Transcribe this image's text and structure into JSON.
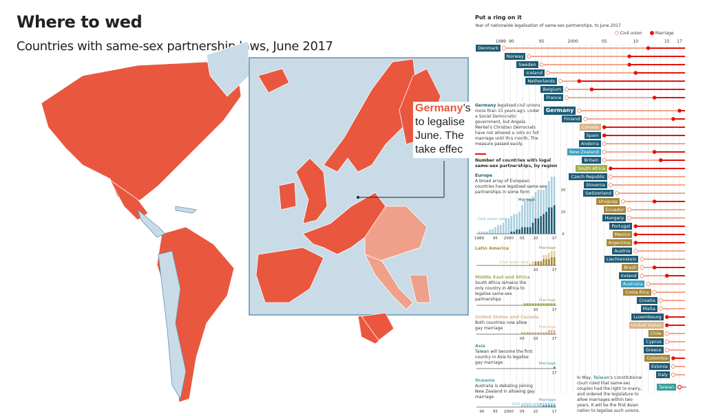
{
  "header": {
    "title": "Where to wed",
    "subtitle": "Countries with same-sex partnership laws, June 2017"
  },
  "map": {
    "callout": {
      "highlight": "Germany",
      "lines": [
        "’s",
        "to legalise",
        "June. The",
        "take effec"
      ]
    },
    "colors": {
      "legal": "#e9573f",
      "civil": "#f0a08a",
      "none": "#c9dbe6",
      "border": "#5a93b8"
    }
  },
  "colors": {
    "civil_union": "#f2a58c",
    "marriage": "#e3120b",
    "europe": "#1d5a73",
    "latin_america": "#a8883a",
    "us_canada": "#d8b48c",
    "oceania": "#3aa0c0",
    "middle_east_africa": "#9fb04a",
    "asia": "#3a9f9a"
  },
  "chart_data": [
    {
      "type": "timeline",
      "title": "Put a ring on it",
      "subtitle": "Year of nationwide legalisation of same-sex partnerships, to June 2017",
      "legend": [
        "Civil union",
        "Marriage"
      ],
      "legend_position": "top-right",
      "x_ticks": [
        "1989",
        "90",
        "95",
        "2000",
        "05",
        "10",
        "15",
        "17"
      ],
      "x_tick_years": [
        1989,
        1990,
        1995,
        2000,
        2005,
        2010,
        2015,
        2017
      ],
      "xlim": [
        1989,
        2017
      ],
      "countries": [
        {
          "name": "Denmark",
          "region": "europe",
          "civil": 1989,
          "marriage": 2012
        },
        {
          "name": "Norway",
          "region": "europe",
          "civil": 1993,
          "marriage": 2009
        },
        {
          "name": "Sweden",
          "region": "europe",
          "civil": 1995,
          "marriage": 2009
        },
        {
          "name": "Iceland",
          "region": "europe",
          "civil": 1996,
          "marriage": 2010
        },
        {
          "name": "Netherlands",
          "region": "europe",
          "civil": 1998,
          "marriage": 2001
        },
        {
          "name": "Belgium",
          "region": "europe",
          "civil": 1999,
          "marriage": 2003
        },
        {
          "name": "France",
          "region": "europe",
          "civil": 1999,
          "marriage": 2013
        },
        {
          "name": "Germany",
          "region": "europe",
          "civil": 2001,
          "marriage": 2017,
          "highlight": true
        },
        {
          "name": "Finland",
          "region": "europe",
          "civil": 2002,
          "marriage": 2016
        },
        {
          "name": "Canada",
          "region": "us_canada",
          "civil": null,
          "marriage": 2005
        },
        {
          "name": "Spain",
          "region": "europe",
          "civil": null,
          "marriage": 2005
        },
        {
          "name": "Andorra",
          "region": "europe",
          "civil": 2005,
          "marriage": null
        },
        {
          "name": "New Zealand",
          "region": "oceania",
          "civil": 2005,
          "marriage": 2013
        },
        {
          "name": "Britain",
          "region": "europe",
          "civil": 2005,
          "marriage": 2014
        },
        {
          "name": "South Africa",
          "region": "middle_east_africa",
          "civil": null,
          "marriage": 2006
        },
        {
          "name": "Czech Republic",
          "region": "europe",
          "civil": 2006,
          "marriage": null
        },
        {
          "name": "Slovenia",
          "region": "europe",
          "civil": 2006,
          "marriage": null
        },
        {
          "name": "Switzerland",
          "region": "europe",
          "civil": 2007,
          "marriage": null
        },
        {
          "name": "Uruguay",
          "region": "latin_america",
          "civil": 2008,
          "marriage": 2013
        },
        {
          "name": "Ecuador",
          "region": "latin_america",
          "civil": 2009,
          "marriage": null
        },
        {
          "name": "Hungary",
          "region": "europe",
          "civil": 2009,
          "marriage": null
        },
        {
          "name": "Portugal",
          "region": "europe",
          "civil": null,
          "marriage": 2010
        },
        {
          "name": "Mexico",
          "region": "latin_america",
          "civil": null,
          "marriage": 2010
        },
        {
          "name": "Argentina",
          "region": "latin_america",
          "civil": null,
          "marriage": 2010
        },
        {
          "name": "Austria",
          "region": "europe",
          "civil": 2010,
          "marriage": null
        },
        {
          "name": "Liechtenstein",
          "region": "europe",
          "civil": 2011,
          "marriage": null
        },
        {
          "name": "Brazil",
          "region": "latin_america",
          "civil": 2011,
          "marriage": 2013
        },
        {
          "name": "Ireland",
          "region": "europe",
          "civil": 2011,
          "marriage": 2015
        },
        {
          "name": "Australia",
          "region": "oceania",
          "civil": 2012,
          "marriage": null
        },
        {
          "name": "Costa Rica",
          "region": "latin_america",
          "civil": 2013,
          "marriage": null
        },
        {
          "name": "Croatia",
          "region": "europe",
          "civil": 2014,
          "marriage": null
        },
        {
          "name": "Malta",
          "region": "europe",
          "civil": 2014,
          "marriage": null
        },
        {
          "name": "Luxembourg",
          "region": "europe",
          "civil": null,
          "marriage": 2015
        },
        {
          "name": "United States",
          "region": "us_canada",
          "civil": null,
          "marriage": 2015
        },
        {
          "name": "Chile",
          "region": "latin_america",
          "civil": 2015,
          "marriage": null
        },
        {
          "name": "Cyprus",
          "region": "europe",
          "civil": 2015,
          "marriage": null
        },
        {
          "name": "Greece",
          "region": "europe",
          "civil": 2015,
          "marriage": null
        },
        {
          "name": "Colombia",
          "region": "latin_america",
          "civil": null,
          "marriage": 2016
        },
        {
          "name": "Estonia",
          "region": "europe",
          "civil": 2016,
          "marriage": null
        },
        {
          "name": "Italy",
          "region": "europe",
          "civil": 2016,
          "marriage": null
        },
        {
          "name": "Taiwan",
          "region": "asia",
          "civil": null,
          "marriage": 2017,
          "pending": true
        }
      ]
    },
    {
      "type": "bar",
      "title": "Number of countries with legal same-sex partnerships, by region",
      "regions": [
        {
          "name": "Europe",
          "key": "europe",
          "text": "A broad array of European countries have legalised same-sex partnerships in some form",
          "labels": {
            "marriage": "Marriage",
            "civil": "Civil union only"
          },
          "x_ticks": [
            "1989",
            "95",
            "2000",
            "05",
            "10",
            "17"
          ],
          "y_ticks": [
            "0",
            "10",
            "20"
          ],
          "ylim": [
            0,
            25
          ],
          "years": [
            1989,
            1990,
            1991,
            1992,
            1993,
            1994,
            1995,
            1996,
            1997,
            1998,
            1999,
            2000,
            2001,
            2002,
            2003,
            2004,
            2005,
            2006,
            2007,
            2008,
            2009,
            2010,
            2011,
            2012,
            2013,
            2014,
            2015,
            2016,
            2017
          ],
          "total": [
            1,
            1,
            1,
            1,
            2,
            2,
            3,
            4,
            4,
            5,
            7,
            7,
            8,
            9,
            9,
            10,
            13,
            15,
            16,
            16,
            17,
            19,
            20,
            20,
            20,
            22,
            24,
            26,
            26
          ],
          "marriage": [
            0,
            0,
            0,
            0,
            0,
            0,
            0,
            0,
            0,
            0,
            0,
            0,
            1,
            1,
            2,
            2,
            3,
            3,
            3,
            3,
            5,
            7,
            7,
            8,
            9,
            10,
            12,
            12,
            13
          ]
        },
        {
          "name": "Latin America",
          "key": "latin_america",
          "text": "",
          "labels": {
            "marriage": "Marriage",
            "civil": "Civil union only"
          },
          "x_ticks": [
            "10",
            "17"
          ],
          "years": [
            2008,
            2009,
            2010,
            2011,
            2012,
            2013,
            2014,
            2015,
            2016,
            2017
          ],
          "total": [
            1,
            2,
            2,
            2,
            2,
            5,
            5,
            6,
            7,
            7
          ],
          "marriage": [
            0,
            0,
            2,
            2,
            2,
            3,
            3,
            3,
            4,
            4
          ]
        },
        {
          "name": "Middle East and Africa",
          "key": "middle_east_africa",
          "text": "South Africa remains the only country in Africa to legalise same-sex partnerships",
          "labels": {
            "marriage": "Marriage"
          },
          "x_ticks": [
            "10",
            "17"
          ],
          "years": [
            2006,
            2007,
            2008,
            2009,
            2010,
            2011,
            2012,
            2013,
            2014,
            2015,
            2016,
            2017
          ],
          "total": [
            1,
            1,
            1,
            1,
            1,
            1,
            1,
            1,
            1,
            1,
            1,
            1
          ],
          "marriage": [
            1,
            1,
            1,
            1,
            1,
            1,
            1,
            1,
            1,
            1,
            1,
            1
          ]
        },
        {
          "name": "United States and Canada",
          "key": "us_canada",
          "text": "Both countries now allow gay marriage",
          "labels": {
            "marriage": "Marriage"
          },
          "x_ticks": [
            "05",
            "10",
            "17"
          ],
          "years": [
            2005,
            2006,
            2007,
            2008,
            2009,
            2010,
            2011,
            2012,
            2013,
            2014,
            2015,
            2016,
            2017
          ],
          "total": [
            1,
            1,
            1,
            1,
            1,
            1,
            1,
            1,
            1,
            1,
            2,
            2,
            2
          ],
          "marriage": [
            1,
            1,
            1,
            1,
            1,
            1,
            1,
            1,
            1,
            1,
            2,
            2,
            2
          ]
        },
        {
          "name": "Asia",
          "key": "asia",
          "text": "Taiwan will become the first country in Asia to legalise gay marriage",
          "labels": {
            "marriage": "Marriage"
          },
          "x_ticks": [
            "17"
          ],
          "years": [
            2017
          ],
          "total": [
            1
          ],
          "marriage": [
            1
          ]
        },
        {
          "name": "Oceania",
          "key": "oceania",
          "text": "Australia is debating joining New Zealand in allowing gay marriage",
          "labels": {
            "marriage": "Marriage",
            "civil": "Civil union only"
          },
          "x_ticks": [
            "90",
            "95",
            "2000",
            "05",
            "10",
            "17"
          ],
          "years": [
            2005,
            2006,
            2007,
            2008,
            2009,
            2010,
            2011,
            2012,
            2013,
            2014,
            2015,
            2016,
            2017
          ],
          "total": [
            1,
            1,
            1,
            1,
            1,
            1,
            1,
            2,
            2,
            2,
            2,
            2,
            2
          ],
          "marriage": [
            0,
            0,
            0,
            0,
            0,
            0,
            0,
            0,
            1,
            1,
            1,
            1,
            1
          ]
        }
      ]
    }
  ],
  "notes": {
    "germany": {
      "highlight": "Germany",
      "text": " legalised civil unions more than 15 years ago, under a Social Democratic government, but Angela Merkel’s Christian Democrats have not allowed a vote on full marriage until this month. The measure passed easily."
    },
    "taiwan": {
      "pre": "In May, ",
      "highlight": "Taiwan",
      "text": "’s constitutional court ruled that same-sex couples had the right to marry, and ordered the legislature to allow marriages within two years. It will be the first Asian nation to legalise such unions."
    }
  }
}
